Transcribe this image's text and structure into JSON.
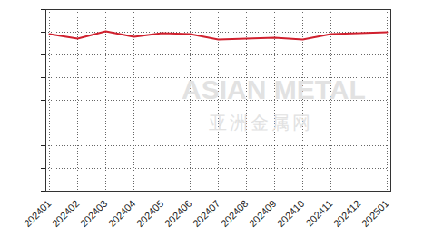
{
  "chart_data": {
    "type": "line",
    "categories": [
      "202401",
      "202402",
      "202403",
      "202404",
      "202405",
      "202406",
      "202407",
      "202408",
      "202409",
      "202410",
      "202411",
      "202412",
      "202501"
    ],
    "values": [
      6.92,
      6.72,
      7.04,
      6.8,
      6.96,
      6.92,
      6.68,
      6.72,
      6.76,
      6.68,
      6.92,
      6.96,
      7.0
    ],
    "color": "#d0202e",
    "ylim": [
      0,
      8
    ],
    "yticks": [
      0,
      1,
      2,
      3,
      4,
      5,
      6,
      7,
      8
    ],
    "grid": true,
    "tick_labels": "x",
    "annotations": [
      "ASIAN METAL",
      "亚洲金属网"
    ]
  }
}
